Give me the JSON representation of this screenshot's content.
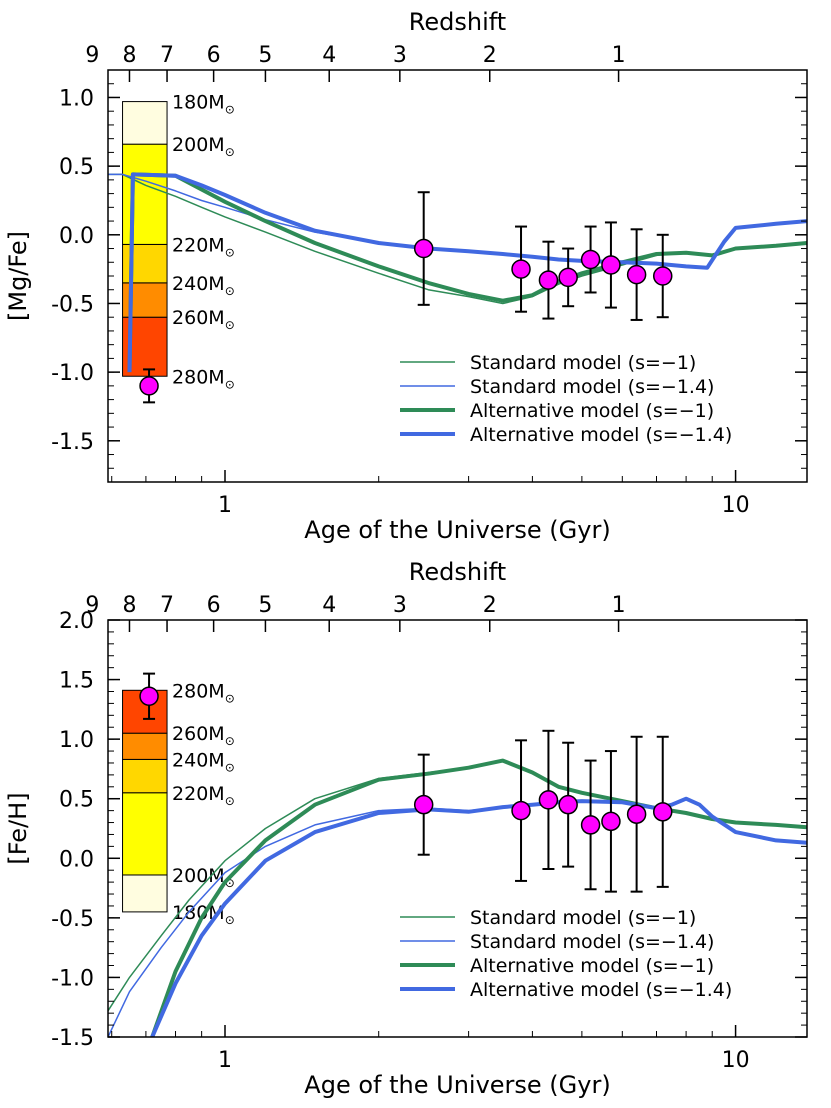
{
  "chart_data": [
    {
      "type": "line",
      "id": "mgfe",
      "ylabel": "[Mg/Fe]",
      "xlabel": "Age of the Universe (Gyr)",
      "top_axis_label": "Redshift",
      "xscale": "log",
      "xlim": [
        0.59,
        13.8
      ],
      "ylim": [
        -1.8,
        1.2
      ],
      "y_ticks": [
        1.0,
        0.5,
        0.0,
        -0.5,
        -1.0,
        -1.5
      ],
      "y_tick_labels": [
        "1.0",
        "0.5",
        "0.0",
        "-0.5",
        "-1.0",
        "-1.5"
      ],
      "x_ticks": [
        1,
        10
      ],
      "x_tick_labels": [
        "1",
        "10"
      ],
      "redshift_ticks": [
        {
          "label": "9",
          "age": 0.55
        },
        {
          "label": "8",
          "age": 0.65
        },
        {
          "label": "7",
          "age": 0.77
        },
        {
          "label": "6",
          "age": 0.95
        },
        {
          "label": "5",
          "age": 1.2
        },
        {
          "label": "4",
          "age": 1.6
        },
        {
          "label": "3",
          "age": 2.2
        },
        {
          "label": "2",
          "age": 3.3
        },
        {
          "label": "1",
          "age": 5.9
        }
      ],
      "mass_bar": {
        "age_range": [
          0.63,
          0.77
        ],
        "segments": [
          {
            "y0": -1.03,
            "y1": -0.6,
            "color": "#ff4500"
          },
          {
            "y0": -0.6,
            "y1": -0.35,
            "color": "#ff8c00"
          },
          {
            "y0": -0.35,
            "y1": -0.07,
            "color": "#ffd700"
          },
          {
            "y0": -0.07,
            "y1": 0.66,
            "color": "#ffff00"
          },
          {
            "y0": 0.66,
            "y1": 0.97,
            "color": "#fffde0"
          }
        ],
        "labels": [
          {
            "text": "180M",
            "y": 0.97
          },
          {
            "text": "200M",
            "y": 0.66
          },
          {
            "text": "220M",
            "y": -0.07
          },
          {
            "text": "240M",
            "y": -0.35
          },
          {
            "text": "260M",
            "y": -0.6
          },
          {
            "text": "280M",
            "y": -1.03
          }
        ]
      },
      "series": [
        {
          "name": "Standard model (s=−1)",
          "color": "#2e8b57",
          "width": 1.5,
          "x": [
            0.59,
            0.63,
            0.7,
            0.8,
            0.9,
            1.0,
            1.2,
            1.5,
            2.0,
            2.5,
            3.0,
            3.5,
            4.0,
            4.5,
            5.0,
            6.0,
            7.0,
            8.0,
            9.0,
            10.0,
            12.0,
            13.8
          ],
          "y": [
            0.44,
            0.44,
            0.36,
            0.28,
            0.2,
            0.13,
            0.02,
            -0.12,
            -0.28,
            -0.4,
            -0.45,
            -0.5,
            -0.45,
            -0.36,
            -0.3,
            -0.22,
            -0.15,
            -0.13,
            -0.15,
            -0.1,
            -0.08,
            -0.06
          ]
        },
        {
          "name": "Standard model (s=−1.4)",
          "color": "#4169e1",
          "width": 1.5,
          "x": [
            0.59,
            0.63,
            0.7,
            0.8,
            0.9,
            1.0,
            1.2,
            1.5,
            2.0,
            2.5,
            3.0,
            3.5,
            4.0,
            4.5,
            5.0,
            6.0,
            7.0,
            8.0,
            8.8,
            9.5,
            10.0,
            12.0,
            13.8
          ],
          "y": [
            0.44,
            0.44,
            0.39,
            0.32,
            0.25,
            0.2,
            0.11,
            0.02,
            -0.06,
            -0.1,
            -0.12,
            -0.14,
            -0.16,
            -0.18,
            -0.19,
            -0.2,
            -0.21,
            -0.23,
            -0.24,
            -0.05,
            0.05,
            0.08,
            0.1
          ]
        },
        {
          "name": "Alternative model (s=−1)",
          "color": "#2e8b57",
          "width": 4,
          "x": [
            0.65,
            0.66,
            0.8,
            0.9,
            1.0,
            1.2,
            1.5,
            2.0,
            2.5,
            3.0,
            3.5,
            4.0,
            4.5,
            5.0,
            6.0,
            7.0,
            8.0,
            9.0,
            10.0,
            12.0,
            13.8
          ],
          "y": [
            -1.0,
            0.44,
            0.43,
            0.33,
            0.24,
            0.1,
            -0.06,
            -0.23,
            -0.35,
            -0.43,
            -0.48,
            -0.44,
            -0.34,
            -0.28,
            -0.2,
            -0.14,
            -0.13,
            -0.15,
            -0.1,
            -0.08,
            -0.06
          ]
        },
        {
          "name": "Alternative model (s=−1.4)",
          "color": "#4169e1",
          "width": 4,
          "x": [
            0.65,
            0.66,
            0.8,
            0.9,
            1.0,
            1.2,
            1.5,
            2.0,
            2.5,
            3.0,
            3.5,
            4.0,
            4.5,
            5.0,
            6.0,
            7.0,
            8.0,
            8.8,
            9.5,
            10.0,
            12.0,
            13.8
          ],
          "y": [
            -1.0,
            0.44,
            0.43,
            0.36,
            0.29,
            0.16,
            0.03,
            -0.06,
            -0.1,
            -0.12,
            -0.14,
            -0.16,
            -0.18,
            -0.19,
            -0.2,
            -0.21,
            -0.23,
            -0.24,
            -0.05,
            0.05,
            0.08,
            0.1
          ]
        }
      ],
      "data_points": [
        {
          "x": 0.71,
          "y": -1.1,
          "err": 0.12
        },
        {
          "x": 2.45,
          "y": -0.1,
          "err": 0.41
        },
        {
          "x": 3.8,
          "y": -0.25,
          "err": 0.31
        },
        {
          "x": 4.3,
          "y": -0.33,
          "err": 0.28
        },
        {
          "x": 4.7,
          "y": -0.31,
          "err": 0.21
        },
        {
          "x": 5.2,
          "y": -0.18,
          "err": 0.24
        },
        {
          "x": 5.7,
          "y": -0.22,
          "err": 0.31
        },
        {
          "x": 6.4,
          "y": -0.29,
          "err": 0.33
        },
        {
          "x": 7.2,
          "y": -0.3,
          "err": 0.3
        }
      ],
      "legend": {
        "position": "lower-right"
      }
    },
    {
      "type": "line",
      "id": "feh",
      "ylabel": "[Fe/H]",
      "xlabel": "Age of the Universe (Gyr)",
      "top_axis_label": "Redshift",
      "xscale": "log",
      "xlim": [
        0.59,
        13.8
      ],
      "ylim": [
        -1.5,
        2.0
      ],
      "y_ticks": [
        2.0,
        1.5,
        1.0,
        0.5,
        0.0,
        -0.5,
        -1.0,
        -1.5
      ],
      "y_tick_labels": [
        "2.0",
        "1.5",
        "1.0",
        "0.5",
        "0.0",
        "-0.5",
        "-1.0",
        "-1.5"
      ],
      "x_ticks": [
        1,
        10
      ],
      "x_tick_labels": [
        "1",
        "10"
      ],
      "redshift_ticks": [
        {
          "label": "9",
          "age": 0.55
        },
        {
          "label": "8",
          "age": 0.65
        },
        {
          "label": "7",
          "age": 0.77
        },
        {
          "label": "6",
          "age": 0.95
        },
        {
          "label": "5",
          "age": 1.2
        },
        {
          "label": "4",
          "age": 1.6
        },
        {
          "label": "3",
          "age": 2.2
        },
        {
          "label": "2",
          "age": 3.3
        },
        {
          "label": "1",
          "age": 5.9
        }
      ],
      "mass_bar": {
        "age_range": [
          0.63,
          0.77
        ],
        "segments": [
          {
            "y0": -0.45,
            "y1": -0.14,
            "color": "#fffde0"
          },
          {
            "y0": -0.14,
            "y1": 0.55,
            "color": "#ffff00"
          },
          {
            "y0": 0.55,
            "y1": 0.83,
            "color": "#ffd700"
          },
          {
            "y0": 0.83,
            "y1": 1.05,
            "color": "#ff8c00"
          },
          {
            "y0": 1.05,
            "y1": 1.41,
            "color": "#ff4500"
          }
        ],
        "labels": [
          {
            "text": "280M",
            "y": 1.41
          },
          {
            "text": "260M",
            "y": 1.05
          },
          {
            "text": "240M",
            "y": 0.83
          },
          {
            "text": "220M",
            "y": 0.55
          },
          {
            "text": "200M",
            "y": -0.14
          },
          {
            "text": "180M",
            "y": -0.45
          }
        ]
      },
      "series": [
        {
          "name": "Standard model (s=−1)",
          "color": "#2e8b57",
          "width": 1.5,
          "x": [
            0.59,
            0.65,
            0.75,
            0.85,
            1.0,
            1.2,
            1.5,
            2.0,
            2.5,
            3.0,
            3.5,
            4.0,
            4.5,
            5.0,
            6.0,
            7.0,
            8.0,
            9.0,
            10.0,
            12.0,
            13.8
          ],
          "y": [
            -1.28,
            -1.0,
            -0.65,
            -0.35,
            -0.02,
            0.25,
            0.5,
            0.67,
            0.72,
            0.76,
            0.82,
            0.72,
            0.6,
            0.55,
            0.48,
            0.42,
            0.38,
            0.33,
            0.3,
            0.28,
            0.26
          ]
        },
        {
          "name": "Standard model (s=−1.4)",
          "color": "#4169e1",
          "width": 1.5,
          "x": [
            0.59,
            0.65,
            0.75,
            0.85,
            1.0,
            1.2,
            1.5,
            2.0,
            2.5,
            3.0,
            3.5,
            4.0,
            4.5,
            5.0,
            6.0,
            7.0,
            7.5,
            8.0,
            8.5,
            9.0,
            10.0,
            12.0,
            13.8
          ],
          "y": [
            -1.5,
            -1.12,
            -0.75,
            -0.45,
            -0.12,
            0.1,
            0.28,
            0.4,
            0.42,
            0.4,
            0.43,
            0.45,
            0.47,
            0.48,
            0.47,
            0.42,
            0.45,
            0.5,
            0.45,
            0.35,
            0.22,
            0.15,
            0.13
          ]
        },
        {
          "name": "Alternative model (s=−1)",
          "color": "#2e8b57",
          "width": 4,
          "x": [
            0.72,
            0.8,
            0.9,
            1.0,
            1.2,
            1.5,
            2.0,
            2.5,
            3.0,
            3.5,
            4.0,
            4.5,
            5.0,
            6.0,
            7.0,
            8.0,
            9.0,
            10.0,
            12.0,
            13.8
          ],
          "y": [
            -1.5,
            -0.95,
            -0.5,
            -0.2,
            0.15,
            0.45,
            0.66,
            0.71,
            0.76,
            0.82,
            0.72,
            0.6,
            0.55,
            0.48,
            0.42,
            0.38,
            0.33,
            0.3,
            0.28,
            0.26
          ]
        },
        {
          "name": "Alternative model (s=−1.4)",
          "color": "#4169e1",
          "width": 4,
          "x": [
            0.72,
            0.8,
            0.9,
            1.0,
            1.2,
            1.5,
            2.0,
            2.5,
            3.0,
            3.5,
            4.0,
            4.5,
            5.0,
            6.0,
            7.0,
            7.5,
            8.0,
            8.5,
            9.0,
            10.0,
            12.0,
            13.8
          ],
          "y": [
            -1.5,
            -1.05,
            -0.65,
            -0.38,
            -0.02,
            0.22,
            0.38,
            0.41,
            0.39,
            0.43,
            0.45,
            0.47,
            0.48,
            0.47,
            0.42,
            0.45,
            0.5,
            0.45,
            0.35,
            0.22,
            0.15,
            0.13
          ]
        }
      ],
      "data_points": [
        {
          "x": 0.71,
          "y": 1.36,
          "err": 0.19
        },
        {
          "x": 2.45,
          "y": 0.45,
          "err": 0.42
        },
        {
          "x": 3.8,
          "y": 0.4,
          "err": 0.59
        },
        {
          "x": 4.3,
          "y": 0.49,
          "err": 0.58
        },
        {
          "x": 4.7,
          "y": 0.45,
          "err": 0.52
        },
        {
          "x": 5.2,
          "y": 0.28,
          "err": 0.54
        },
        {
          "x": 5.7,
          "y": 0.31,
          "err": 0.59
        },
        {
          "x": 6.4,
          "y": 0.37,
          "err": 0.65
        },
        {
          "x": 7.2,
          "y": 0.39,
          "err": 0.63
        }
      ],
      "legend": {
        "position": "lower-right"
      }
    }
  ],
  "legend_labels": [
    "Standard model (s=−1)",
    "Standard model (s=−1.4)",
    "Alternative model (s=−1)",
    "Alternative model (s=−1.4)"
  ],
  "colors": {
    "standard_green": "#2e8b57",
    "standard_blue": "#4169e1",
    "marker_fill": "#ff00ff"
  }
}
